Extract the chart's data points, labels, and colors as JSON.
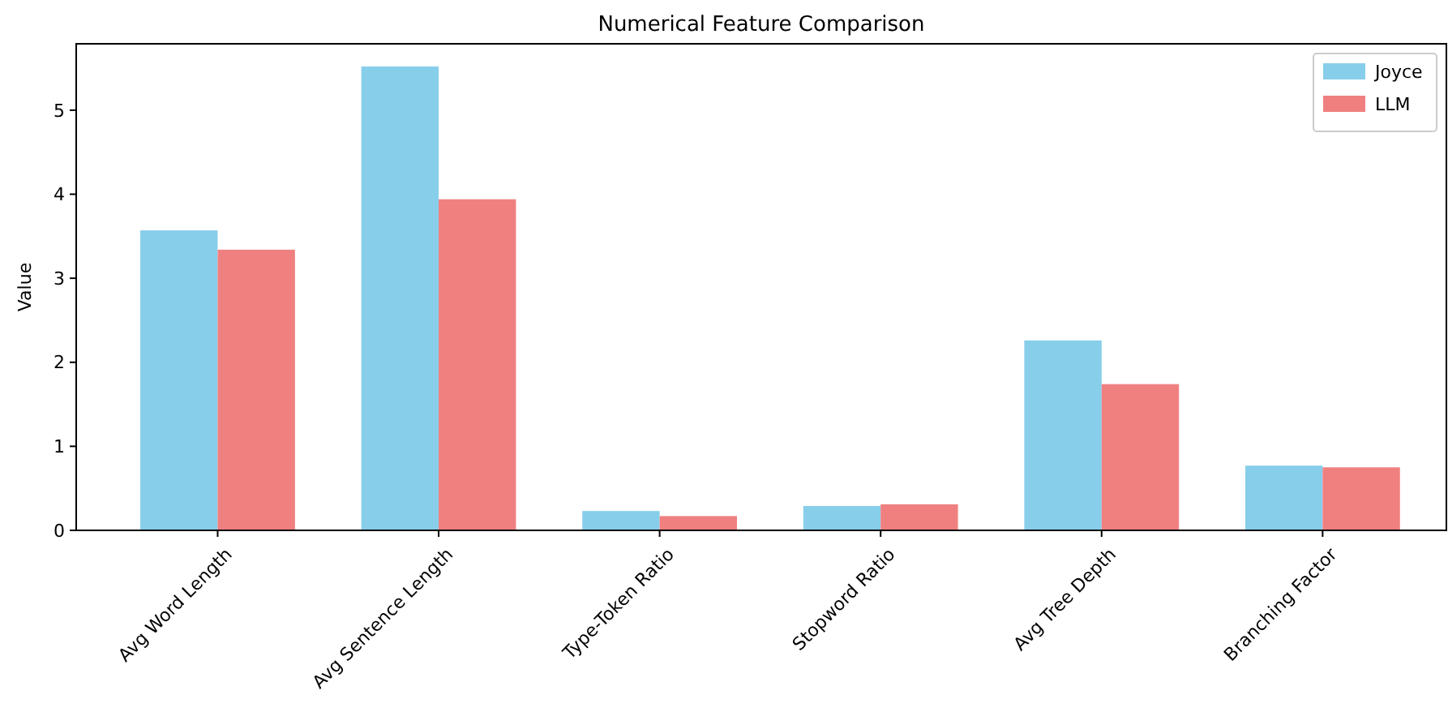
{
  "chart_data": {
    "type": "bar",
    "title": "Numerical Feature Comparison",
    "ylabel": "Value",
    "categories": [
      "Avg Word Length",
      "Avg Sentence Length",
      "Type-Token Ratio",
      "Stopword Ratio",
      "Avg Tree Depth",
      "Branching Factor"
    ],
    "series": [
      {
        "name": "Joyce",
        "color": "#87ceeb",
        "values": [
          3.57,
          5.52,
          0.23,
          0.29,
          2.26,
          0.77
        ]
      },
      {
        "name": "LLM",
        "color": "#f08080",
        "values": [
          3.34,
          3.94,
          0.17,
          0.31,
          1.74,
          0.75
        ]
      }
    ],
    "ylim": [
      0,
      5.79
    ],
    "yticks": [
      0,
      1,
      2,
      3,
      4,
      5
    ],
    "grid": false,
    "legend": "top right"
  }
}
